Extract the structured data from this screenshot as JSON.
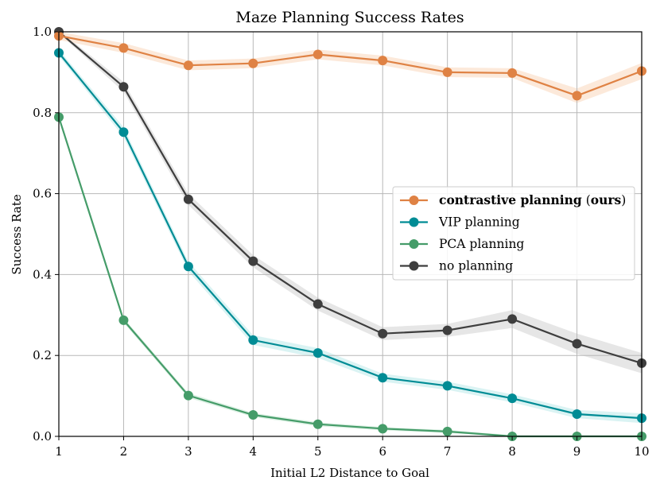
{
  "chart_data": {
    "type": "line",
    "title": "Maze Planning Success Rates",
    "xlabel": "Initial L2 Distance to Goal",
    "ylabel": "Success Rate",
    "xlim": [
      1,
      10
    ],
    "ylim": [
      0,
      1
    ],
    "grid": true,
    "legend_position": "center-right",
    "xticks": [
      "1",
      "2",
      "3",
      "4",
      "5",
      "6",
      "7",
      "8",
      "9",
      "10"
    ],
    "yticks": [
      "0.0",
      "0.2",
      "0.4",
      "0.6",
      "0.8",
      "1.0"
    ],
    "x": [
      1,
      2,
      3,
      4,
      5,
      6,
      7,
      8,
      9,
      10
    ],
    "series": [
      {
        "name": "contrastive planning",
        "name_suffix_open": "(",
        "name_suffix_bold": "ours",
        "name_suffix_close": ")",
        "color": "#df8244",
        "band_color": "#fce5d4",
        "values": [
          0.99,
          0.96,
          0.917,
          0.922,
          0.944,
          0.929,
          0.9,
          0.898,
          0.842,
          0.903
        ],
        "spread": [
          0.01,
          0.012,
          0.012,
          0.012,
          0.012,
          0.012,
          0.012,
          0.012,
          0.018,
          0.02
        ]
      },
      {
        "name": "VIP planning",
        "color": "#008c95",
        "band_color": "#d4f1f1",
        "values": [
          0.948,
          0.752,
          0.42,
          0.238,
          0.206,
          0.145,
          0.125,
          0.094,
          0.055,
          0.045
        ],
        "spread": [
          0.008,
          0.012,
          0.012,
          0.012,
          0.012,
          0.01,
          0.01,
          0.01,
          0.01,
          0.012
        ]
      },
      {
        "name": "PCA planning",
        "color": "#459c69",
        "band_color": "#d8efe0",
        "values": [
          0.789,
          0.287,
          0.101,
          0.053,
          0.03,
          0.019,
          0.012,
          0.0,
          0.0,
          0.0
        ],
        "spread": [
          0.006,
          0.006,
          0.006,
          0.005,
          0.005,
          0.004,
          0.004,
          0.003,
          0.003,
          0.003
        ]
      },
      {
        "name": "no planning",
        "color": "#3e3e3e",
        "band_color": "#e2e2e2",
        "values": [
          1.0,
          0.864,
          0.586,
          0.433,
          0.327,
          0.254,
          0.262,
          0.29,
          0.229,
          0.181
        ],
        "spread": [
          0.004,
          0.012,
          0.014,
          0.015,
          0.016,
          0.016,
          0.016,
          0.022,
          0.025,
          0.025
        ]
      }
    ]
  }
}
